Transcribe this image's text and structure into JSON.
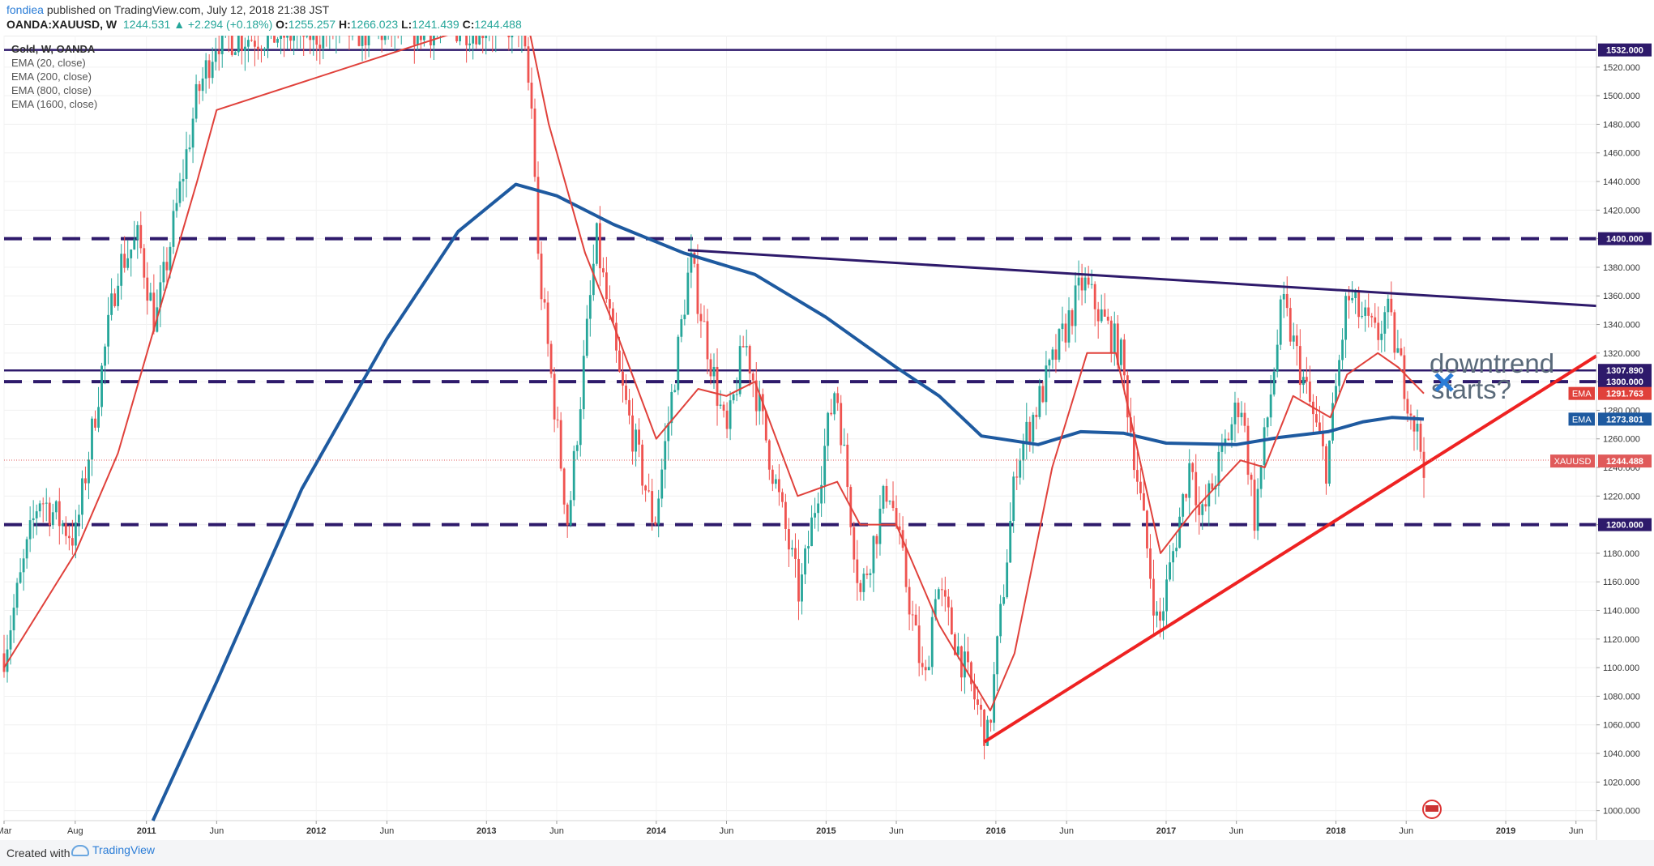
{
  "header": {
    "author": "fondiea",
    "published": "published on TradingView.com, July 12, 2018 21:38 JST",
    "symbol_line": "OANDA:XAUUSD, W",
    "last": "1244.531",
    "change": "▲ +2.294 (+0.18%)",
    "open_label": "O:",
    "open": "1255.257",
    "high_label": "H:",
    "high": "1266.023",
    "low_label": "L:",
    "low": "1241.439",
    "close_label": "C:",
    "close": "1244.488"
  },
  "legend": {
    "title": "Gold, W, OANDA",
    "items": [
      "EMA (20, close)",
      "EMA (200, close)",
      "EMA (800, close)",
      "EMA (1600, close)"
    ]
  },
  "annotation": {
    "line1": "downtrend",
    "line2": "starts?"
  },
  "footer": {
    "created_with": "Created with",
    "brand": "TradingView"
  },
  "colors": {
    "up": "#26a69a",
    "down": "#ef5350",
    "ema20": "#e0413b",
    "ema200": "#1e5aa0",
    "level": "#2e1a6b",
    "support": "#ee2222",
    "price_line": "#e05a5a"
  },
  "chart_data": {
    "type": "candlestick",
    "timeframe": "W",
    "ylim": [
      993,
      1542
    ],
    "xlim": [
      "2010-03-01",
      "2019-07-15"
    ],
    "x_ticks": [
      {
        "date": "2010-03-01",
        "label": "Mar"
      },
      {
        "date": "2010-08-01",
        "label": "Aug"
      },
      {
        "date": "2011-01-01",
        "label": "2011"
      },
      {
        "date": "2011-06-01",
        "label": "Jun"
      },
      {
        "date": "2012-01-01",
        "label": "2012"
      },
      {
        "date": "2012-06-01",
        "label": "Jun"
      },
      {
        "date": "2013-01-01",
        "label": "2013"
      },
      {
        "date": "2013-06-01",
        "label": "Jun"
      },
      {
        "date": "2014-01-01",
        "label": "2014"
      },
      {
        "date": "2014-06-01",
        "label": "Jun"
      },
      {
        "date": "2015-01-01",
        "label": "2015"
      },
      {
        "date": "2015-06-01",
        "label": "Jun"
      },
      {
        "date": "2016-01-01",
        "label": "2016"
      },
      {
        "date": "2016-06-01",
        "label": "Jun"
      },
      {
        "date": "2017-01-01",
        "label": "2017"
      },
      {
        "date": "2017-06-01",
        "label": "Jun"
      },
      {
        "date": "2018-01-01",
        "label": "2018"
      },
      {
        "date": "2018-06-01",
        "label": "Jun"
      },
      {
        "date": "2019-01-01",
        "label": "2019"
      },
      {
        "date": "2019-06-01",
        "label": "Jun"
      }
    ],
    "y_ticks": [
      "1000.000",
      "1020.000",
      "1040.000",
      "1060.000",
      "1080.000",
      "1100.000",
      "1120.000",
      "1140.000",
      "1160.000",
      "1180.000",
      "1200.000",
      "1220.000",
      "1240.000",
      "1260.000",
      "1280.000",
      "1300.000",
      "1320.000",
      "1340.000",
      "1360.000",
      "1380.000",
      "1400.000",
      "1420.000",
      "1440.000",
      "1460.000",
      "1480.000",
      "1500.000",
      "1520.000"
    ],
    "horizontal_levels": [
      {
        "value": 1532,
        "style": "solid",
        "label": "1532.000"
      },
      {
        "value": 1400,
        "style": "dashed",
        "label": "1400.000"
      },
      {
        "value": 1307.89,
        "style": "solid",
        "label": "1307.890"
      },
      {
        "value": 1300,
        "style": "dashed",
        "label": "1300.000"
      },
      {
        "value": 1200,
        "style": "dashed",
        "label": "1200.000"
      }
    ],
    "price_labels": [
      {
        "name": "EMA",
        "value": 1291.763,
        "label": "1291.763",
        "color": "#e0413b"
      },
      {
        "name": "EMA",
        "value": 1273.801,
        "label": "1273.801",
        "color": "#1e5aa0"
      },
      {
        "name": "XAUUSD",
        "value": 1244.488,
        "label": "1244.488",
        "color": "#e05a5a"
      }
    ],
    "trendlines": [
      {
        "kind": "resistance",
        "from": [
          "2014-03-10",
          1392
        ],
        "to": [
          "2019-07-15",
          1353
        ]
      },
      {
        "kind": "support",
        "from": [
          "2015-12-07",
          1048
        ],
        "to": [
          "2019-07-15",
          1318
        ]
      }
    ],
    "candle_path": [
      [
        "2010-03-01",
        1110
      ],
      [
        "2010-05-15",
        1220
      ],
      [
        "2010-08-01",
        1190
      ],
      [
        "2010-11-01",
        1380
      ],
      [
        "2010-12-15",
        1400
      ],
      [
        "2011-01-20",
        1340
      ],
      [
        "2011-04-20",
        1500
      ],
      [
        "2011-06-01",
        1540
      ],
      [
        "2013-03-15",
        1550
      ],
      [
        "2013-04-12",
        1480
      ],
      [
        "2013-04-20",
        1390
      ],
      [
        "2013-06-25",
        1200
      ],
      [
        "2013-08-25",
        1400
      ],
      [
        "2013-10-15",
        1300
      ],
      [
        "2013-12-28",
        1200
      ],
      [
        "2014-03-15",
        1385
      ],
      [
        "2014-06-01",
        1260
      ],
      [
        "2014-07-10",
        1330
      ],
      [
        "2014-11-05",
        1150
      ],
      [
        "2015-01-22",
        1300
      ],
      [
        "2015-03-15",
        1150
      ],
      [
        "2015-05-15",
        1230
      ],
      [
        "2015-08-01",
        1085
      ],
      [
        "2015-08-25",
        1160
      ],
      [
        "2015-12-15",
        1050
      ],
      [
        "2016-02-15",
        1245
      ],
      [
        "2016-07-06",
        1370
      ],
      [
        "2016-09-25",
        1320
      ],
      [
        "2016-12-15",
        1125
      ],
      [
        "2017-02-25",
        1250
      ],
      [
        "2017-03-15",
        1200
      ],
      [
        "2017-06-10",
        1290
      ],
      [
        "2017-07-10",
        1205
      ],
      [
        "2017-09-08",
        1355
      ],
      [
        "2017-12-12",
        1240
      ],
      [
        "2018-01-25",
        1360
      ],
      [
        "2018-03-30",
        1330
      ],
      [
        "2018-04-20",
        1350
      ],
      [
        "2018-07-09",
        1244.488
      ]
    ],
    "ema20_path": [
      [
        "2010-03-01",
        1100
      ],
      [
        "2010-08-01",
        1180
      ],
      [
        "2010-11-01",
        1250
      ],
      [
        "2011-01-20",
        1340
      ],
      [
        "2011-04-20",
        1440
      ],
      [
        "2011-06-01",
        1490
      ],
      [
        "2013-03-25",
        1560
      ],
      [
        "2013-05-15",
        1480
      ],
      [
        "2013-08-01",
        1390
      ],
      [
        "2013-10-01",
        1340
      ],
      [
        "2014-01-01",
        1260
      ],
      [
        "2014-04-01",
        1295
      ],
      [
        "2014-06-01",
        1290
      ],
      [
        "2014-08-01",
        1300
      ],
      [
        "2014-11-01",
        1220
      ],
      [
        "2015-01-25",
        1230
      ],
      [
        "2015-03-15",
        1200
      ],
      [
        "2015-06-01",
        1200
      ],
      [
        "2015-09-01",
        1130
      ],
      [
        "2015-12-20",
        1070
      ],
      [
        "2016-02-10",
        1110
      ],
      [
        "2016-05-01",
        1240
      ],
      [
        "2016-07-15",
        1320
      ],
      [
        "2016-09-15",
        1320
      ],
      [
        "2016-12-20",
        1180
      ],
      [
        "2017-03-01",
        1210
      ],
      [
        "2017-06-10",
        1245
      ],
      [
        "2017-08-01",
        1240
      ],
      [
        "2017-10-01",
        1290
      ],
      [
        "2017-12-20",
        1275
      ],
      [
        "2018-01-25",
        1305
      ],
      [
        "2018-04-01",
        1320
      ],
      [
        "2018-05-15",
        1310
      ],
      [
        "2018-07-09",
        1291.763
      ]
    ],
    "ema200_path": [
      [
        "2011-01-15",
        993
      ],
      [
        "2011-06-01",
        1090
      ],
      [
        "2011-12-01",
        1225
      ],
      [
        "2012-06-01",
        1330
      ],
      [
        "2012-11-01",
        1405
      ],
      [
        "2013-03-05",
        1438
      ],
      [
        "2013-06-01",
        1430
      ],
      [
        "2013-10-01",
        1410
      ],
      [
        "2014-03-01",
        1390
      ],
      [
        "2014-08-01",
        1375
      ],
      [
        "2015-01-01",
        1345
      ],
      [
        "2015-06-01",
        1310
      ],
      [
        "2015-09-01",
        1290
      ],
      [
        "2015-12-01",
        1262
      ],
      [
        "2016-04-01",
        1256
      ],
      [
        "2016-07-01",
        1265
      ],
      [
        "2016-10-01",
        1264
      ],
      [
        "2017-01-01",
        1257
      ],
      [
        "2017-06-01",
        1256
      ],
      [
        "2017-09-01",
        1261
      ],
      [
        "2017-12-15",
        1265
      ],
      [
        "2018-03-01",
        1272
      ],
      [
        "2018-05-01",
        1275
      ],
      [
        "2018-07-09",
        1273.801
      ]
    ]
  }
}
